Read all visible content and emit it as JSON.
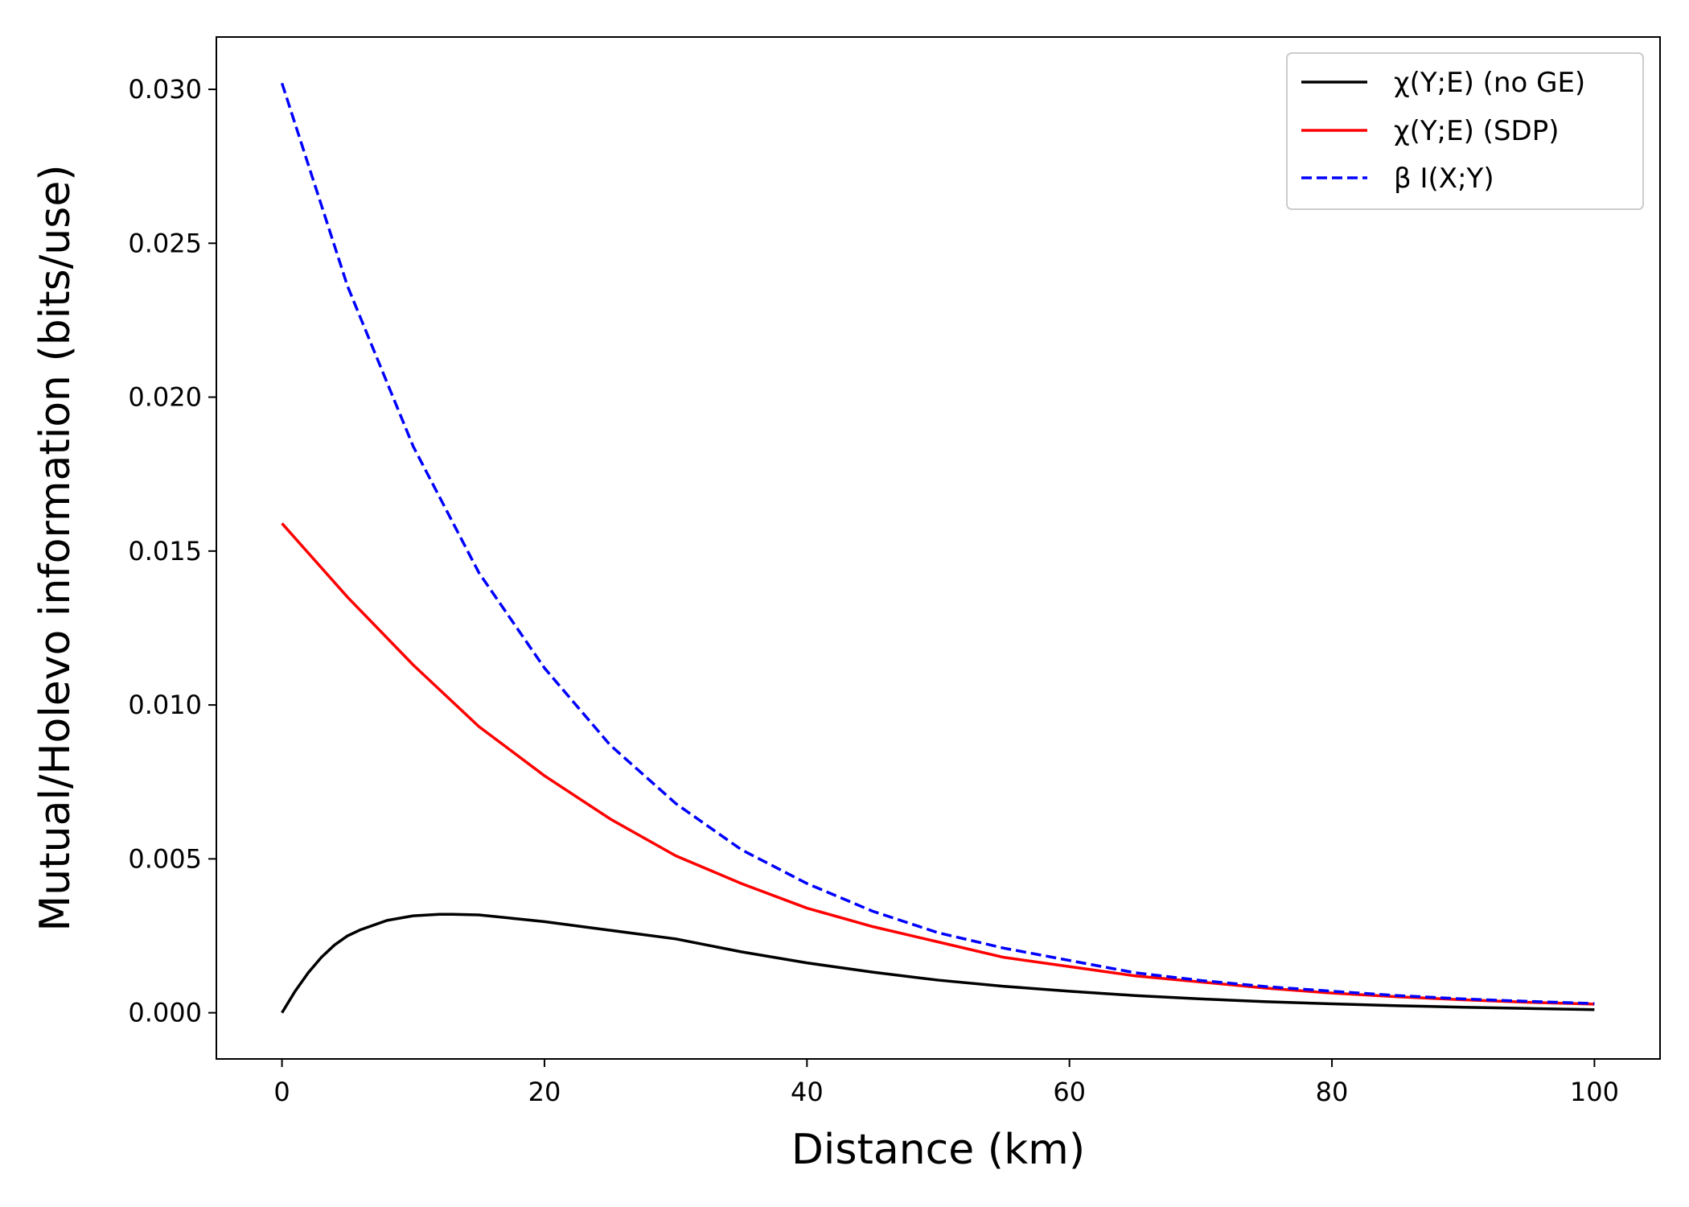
{
  "chart_data": {
    "type": "line",
    "title": "",
    "xlabel": "Distance (km)",
    "ylabel": "Mutual/Holevo information (bits/use)",
    "xlim": [
      -5,
      105
    ],
    "ylim": [
      -0.0015,
      0.0317
    ],
    "xticks": [
      0,
      20,
      40,
      60,
      80,
      100
    ],
    "xtick_labels": [
      "0",
      "20",
      "40",
      "60",
      "80",
      "100"
    ],
    "yticks": [
      0.0,
      0.005,
      0.01,
      0.015,
      0.02,
      0.025,
      0.03
    ],
    "ytick_labels": [
      "0.000",
      "0.005",
      "0.010",
      "0.015",
      "0.020",
      "0.025",
      "0.030"
    ],
    "grid": false,
    "legend_position": "top-right",
    "series": [
      {
        "name": "χ(Y;E) (no GE)",
        "color": "#000000",
        "style": "solid",
        "x": [
          0,
          1,
          2,
          3,
          4,
          5,
          6,
          8,
          10,
          12,
          13,
          15,
          20,
          25,
          30,
          35,
          40,
          45,
          50,
          55,
          60,
          65,
          70,
          75,
          80,
          85,
          90,
          95,
          100
        ],
        "y": [
          0.0,
          0.0007,
          0.0013,
          0.0018,
          0.0022,
          0.0025,
          0.0027,
          0.003,
          0.00315,
          0.0032,
          0.0032,
          0.00318,
          0.00296,
          0.00268,
          0.0024,
          0.00198,
          0.00162,
          0.00132,
          0.00106,
          0.00086,
          0.0007,
          0.00056,
          0.00045,
          0.00036,
          0.00029,
          0.00023,
          0.00018,
          0.00014,
          0.0001
        ]
      },
      {
        "name": "χ(Y;E) (SDP)",
        "color": "#ff0000",
        "style": "solid",
        "x": [
          0,
          5,
          10,
          15,
          20,
          25,
          30,
          35,
          40,
          45,
          50,
          55,
          60,
          65,
          70,
          75,
          80,
          85,
          90,
          95,
          100
        ],
        "y": [
          0.0159,
          0.0135,
          0.0113,
          0.0093,
          0.0077,
          0.0063,
          0.0051,
          0.0042,
          0.0034,
          0.0028,
          0.0023,
          0.0018,
          0.0015,
          0.0012,
          0.001,
          0.0008,
          0.00064,
          0.00052,
          0.00042,
          0.00034,
          0.00028
        ]
      },
      {
        "name": "β I(X;Y)",
        "color": "#0000ff",
        "style": "dashed",
        "x": [
          0,
          5,
          10,
          15,
          20,
          25,
          30,
          35,
          40,
          45,
          50,
          55,
          60,
          65,
          70,
          75,
          80,
          85,
          90,
          95,
          100
        ],
        "y": [
          0.0302,
          0.0236,
          0.0184,
          0.0143,
          0.0112,
          0.0087,
          0.0068,
          0.0053,
          0.0042,
          0.0033,
          0.0026,
          0.0021,
          0.0017,
          0.0013,
          0.00105,
          0.00085,
          0.0007,
          0.00056,
          0.00045,
          0.00037,
          0.0003
        ]
      }
    ]
  }
}
